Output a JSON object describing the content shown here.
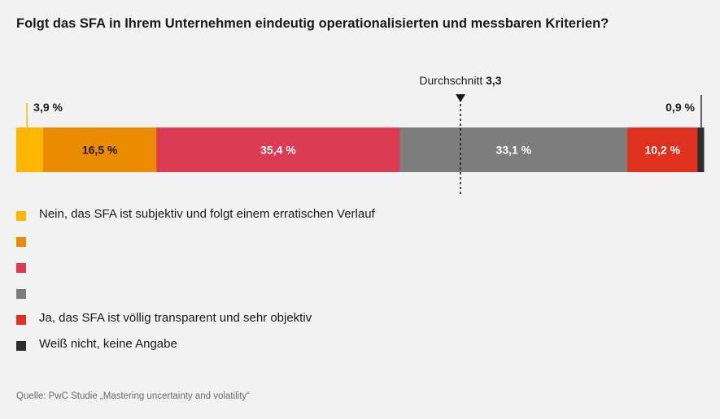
{
  "title": "Folgt das SFA in Ihrem Unternehmen eindeutig operationalisierten und messbaren Kriterien?",
  "source": "Quelle: PwC Studie „Mastering uncertainty and volatility“",
  "chart_data": {
    "type": "bar",
    "orientation": "horizontal-stacked-100",
    "segments": [
      {
        "value": 3.9,
        "label": "3,9 %",
        "color": "#ffb600",
        "label_position": "outside-above-left",
        "label_color": "#1a1a1a"
      },
      {
        "value": 16.5,
        "label": "16,5 %",
        "color": "#eb8c00",
        "label_position": "inside",
        "label_color": "#1a1a1a"
      },
      {
        "value": 35.4,
        "label": "35,4 %",
        "color": "#db3c54",
        "label_position": "inside",
        "label_color": "#ffffff"
      },
      {
        "value": 33.1,
        "label": "33,1 %",
        "color": "#7d7d7d",
        "label_position": "inside",
        "label_color": "#ffffff"
      },
      {
        "value": 10.2,
        "label": "10,2 %",
        "color": "#e0301e",
        "label_position": "inside",
        "label_color": "#ffffff"
      },
      {
        "value": 0.9,
        "label": "0,9 %",
        "color": "#2d2d2d",
        "label_position": "outside-above-right",
        "label_color": "#1a1a1a"
      }
    ],
    "average": {
      "prefix": "Durchschnitt",
      "value_label": "3,3"
    },
    "legend": [
      {
        "color": "#ffb600",
        "label": "Nein, das SFA ist subjektiv und folgt einem erratischen Verlauf"
      },
      {
        "color": "#eb8c00",
        "label": ""
      },
      {
        "color": "#db3c54",
        "label": ""
      },
      {
        "color": "#7d7d7d",
        "label": ""
      },
      {
        "color": "#e0301e",
        "label": "Ja, das SFA ist völlig transparent und sehr objektiv"
      },
      {
        "color": "#2d2d2d",
        "label": "Weiß nicht, keine Angabe"
      }
    ]
  }
}
